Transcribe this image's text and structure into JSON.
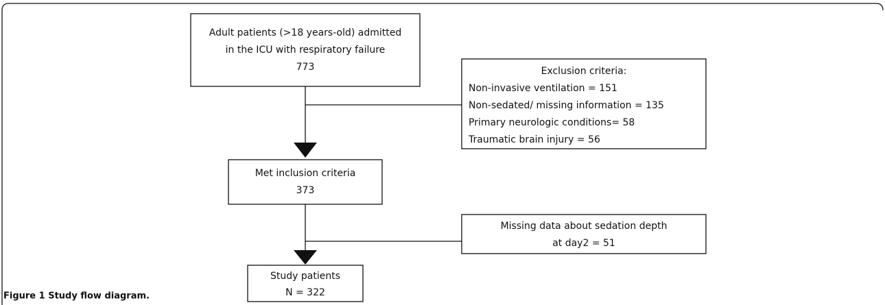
{
  "nodes": [
    {
      "lines": [
        "Adult patients (>18 years-old) admitted",
        "in the ICU with respiratory failure",
        "773"
      ]
    },
    {
      "lines": [
        "Exclusion criteria:",
        "Non-invasive ventilation = 151",
        "Non-sedated/ missing information = 135",
        "Primary neurologic conditions= 58",
        "Traumatic brain injury = 56"
      ]
    },
    {
      "lines": [
        "Met inclusion criteria",
        "373"
      ]
    },
    {
      "lines": [
        "Missing data about sedation depth",
        "at day2 = 51"
      ]
    },
    {
      "lines": [
        "Study patients",
        "N = 322"
      ]
    }
  ],
  "caption": "Figure 1 Study flow diagram."
}
